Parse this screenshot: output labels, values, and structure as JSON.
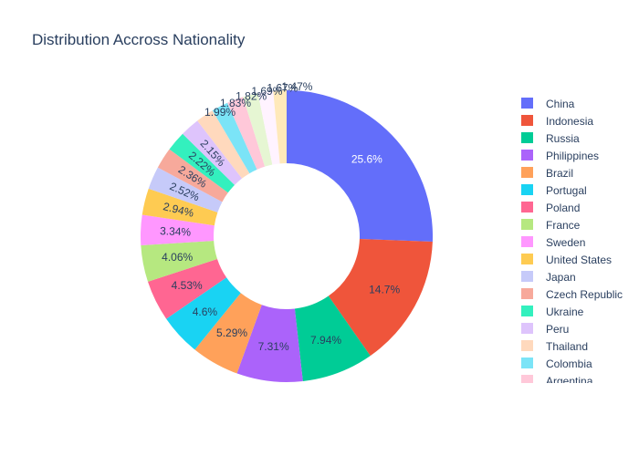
{
  "chart_data": {
    "type": "pie",
    "hole": 0.5,
    "title": "Distribution Accross Nationality",
    "legend_placement": "right",
    "slices": [
      {
        "name": "China",
        "percent": 25.6,
        "label": "25.6%",
        "color": "#636efa"
      },
      {
        "name": "Indonesia",
        "percent": 14.7,
        "label": "14.7%",
        "color": "#EF553B"
      },
      {
        "name": "Russia",
        "percent": 7.94,
        "label": "7.94%",
        "color": "#00cc96"
      },
      {
        "name": "Philippines",
        "percent": 7.31,
        "label": "7.31%",
        "color": "#ab63fa"
      },
      {
        "name": "Brazil",
        "percent": 5.29,
        "label": "5.29%",
        "color": "#FFA15A"
      },
      {
        "name": "Portugal",
        "percent": 4.6,
        "label": "4.6%",
        "color": "#19d3f3"
      },
      {
        "name": "Poland",
        "percent": 4.53,
        "label": "4.53%",
        "color": "#FF6692"
      },
      {
        "name": "France",
        "percent": 4.06,
        "label": "4.06%",
        "color": "#B6E880"
      },
      {
        "name": "Sweden",
        "percent": 3.34,
        "label": "3.34%",
        "color": "#FF97FF"
      },
      {
        "name": "United States",
        "percent": 2.94,
        "label": "2.94%",
        "color": "#FECB52"
      },
      {
        "name": "Japan",
        "percent": 2.52,
        "label": "2.52%",
        "color": "#c6caf9"
      },
      {
        "name": "Czech Republic",
        "percent": 2.36,
        "label": "2.36%",
        "color": "#f7a99b"
      },
      {
        "name": "Ukraine",
        "percent": 2.22,
        "label": "2.22%",
        "color": "#33f0be"
      },
      {
        "name": "Peru",
        "percent": 2.15,
        "label": "2.15%",
        "color": "#dec4fc"
      },
      {
        "name": "Thailand",
        "percent": 1.99,
        "label": "1.99%",
        "color": "#ffd9bd"
      },
      {
        "name": "Colombia",
        "percent": 1.83,
        "label": "1.83%",
        "color": "#7be4f7"
      },
      {
        "name": "Argentina",
        "percent": 1.82,
        "label": "1.82%",
        "color": "#ffc8d9"
      },
      {
        "name": "",
        "percent": 1.69,
        "label": "1.69%",
        "color": "#e6f6d3"
      },
      {
        "name": "",
        "percent": 1.67,
        "label": "1.67%",
        "color": "#fff3ff"
      },
      {
        "name": "",
        "percent": 1.47,
        "label": "1.47%",
        "color": "#ffe9ba"
      }
    ]
  }
}
